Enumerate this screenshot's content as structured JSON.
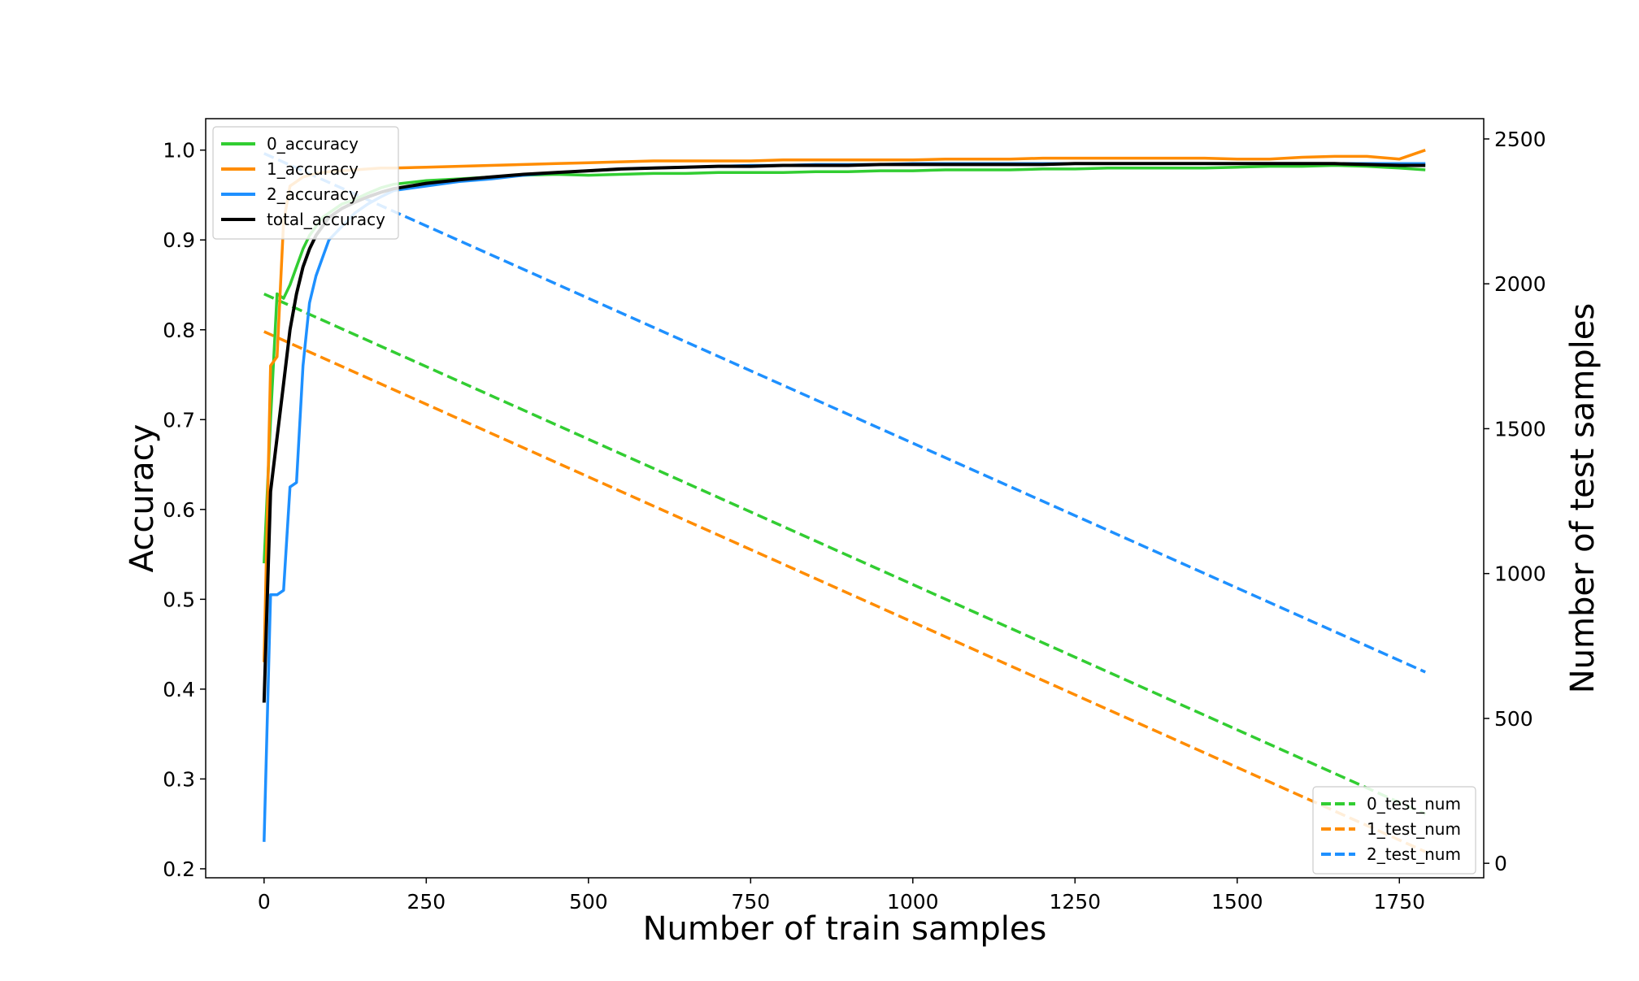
{
  "chart_data": {
    "type": "line",
    "xlabel": "Number of train samples",
    "ylabel": "Accuracy",
    "y2label": "Number of test samples",
    "xlim": [
      -90,
      1880
    ],
    "ylim": [
      0.19,
      1.035
    ],
    "y2lim": [
      -50,
      2570
    ],
    "x_ticks": [
      0,
      250,
      500,
      750,
      1000,
      1250,
      1500,
      1750
    ],
    "y_ticks": [
      0.2,
      0.3,
      0.4,
      0.5,
      0.6,
      0.7,
      0.8,
      0.9,
      1.0
    ],
    "y2_ticks": [
      0,
      500,
      1000,
      1500,
      2000,
      2500
    ],
    "grid": false,
    "legend_left_placement": "top-left",
    "legend_right_placement": "bottom-right",
    "accuracy_series": [
      {
        "name": "0_accuracy",
        "color": "#32cd32",
        "x": [
          0,
          10,
          20,
          30,
          40,
          50,
          60,
          70,
          80,
          90,
          100,
          120,
          140,
          160,
          180,
          200,
          250,
          300,
          350,
          400,
          450,
          500,
          550,
          600,
          650,
          700,
          750,
          800,
          850,
          900,
          950,
          1000,
          1050,
          1100,
          1150,
          1200,
          1250,
          1300,
          1350,
          1400,
          1450,
          1500,
          1550,
          1600,
          1650,
          1700,
          1750,
          1790
        ],
        "values": [
          0.54,
          0.7,
          0.84,
          0.835,
          0.85,
          0.87,
          0.89,
          0.905,
          0.915,
          0.925,
          0.93,
          0.94,
          0.945,
          0.952,
          0.958,
          0.962,
          0.966,
          0.968,
          0.97,
          0.972,
          0.973,
          0.972,
          0.973,
          0.974,
          0.974,
          0.975,
          0.975,
          0.975,
          0.976,
          0.976,
          0.977,
          0.977,
          0.978,
          0.978,
          0.978,
          0.979,
          0.979,
          0.98,
          0.98,
          0.98,
          0.98,
          0.981,
          0.982,
          0.982,
          0.983,
          0.982,
          0.98,
          0.978
        ]
      },
      {
        "name": "1_accuracy",
        "color": "#ff8c00",
        "x": [
          0,
          10,
          20,
          30,
          40,
          50,
          60,
          70,
          80,
          90,
          100,
          120,
          140,
          160,
          180,
          200,
          250,
          300,
          350,
          400,
          450,
          500,
          550,
          600,
          650,
          700,
          750,
          800,
          850,
          900,
          950,
          1000,
          1050,
          1100,
          1150,
          1200,
          1250,
          1300,
          1350,
          1400,
          1450,
          1500,
          1550,
          1600,
          1650,
          1700,
          1750,
          1790
        ],
        "values": [
          0.43,
          0.76,
          0.77,
          0.92,
          0.96,
          0.965,
          0.97,
          0.972,
          0.974,
          0.975,
          0.976,
          0.977,
          0.978,
          0.979,
          0.98,
          0.98,
          0.981,
          0.982,
          0.983,
          0.984,
          0.985,
          0.986,
          0.987,
          0.988,
          0.988,
          0.988,
          0.988,
          0.989,
          0.989,
          0.989,
          0.989,
          0.989,
          0.99,
          0.99,
          0.99,
          0.991,
          0.991,
          0.991,
          0.991,
          0.991,
          0.991,
          0.99,
          0.99,
          0.992,
          0.993,
          0.993,
          0.99,
          1.0
        ]
      },
      {
        "name": "2_accuracy",
        "color": "#1e90ff",
        "x": [
          0,
          10,
          20,
          30,
          40,
          50,
          60,
          70,
          80,
          90,
          100,
          120,
          140,
          160,
          180,
          200,
          250,
          300,
          350,
          400,
          450,
          500,
          550,
          600,
          650,
          700,
          750,
          800,
          850,
          900,
          950,
          1000,
          1050,
          1100,
          1150,
          1200,
          1250,
          1300,
          1350,
          1400,
          1450,
          1500,
          1550,
          1600,
          1650,
          1700,
          1750,
          1790
        ],
        "values": [
          0.23,
          0.505,
          0.505,
          0.51,
          0.625,
          0.63,
          0.76,
          0.83,
          0.86,
          0.88,
          0.9,
          0.915,
          0.93,
          0.94,
          0.948,
          0.955,
          0.96,
          0.965,
          0.968,
          0.972,
          0.975,
          0.977,
          0.979,
          0.98,
          0.981,
          0.982,
          0.983,
          0.983,
          0.984,
          0.984,
          0.984,
          0.985,
          0.985,
          0.985,
          0.985,
          0.985,
          0.985,
          0.985,
          0.985,
          0.985,
          0.985,
          0.985,
          0.985,
          0.985,
          0.985,
          0.985,
          0.985,
          0.985
        ]
      },
      {
        "name": "total_accuracy",
        "color": "#000000",
        "x": [
          0,
          10,
          20,
          30,
          40,
          50,
          60,
          70,
          80,
          90,
          100,
          120,
          140,
          160,
          180,
          200,
          250,
          300,
          350,
          400,
          450,
          500,
          550,
          600,
          650,
          700,
          750,
          800,
          850,
          900,
          950,
          1000,
          1050,
          1100,
          1150,
          1200,
          1250,
          1300,
          1350,
          1400,
          1450,
          1500,
          1550,
          1600,
          1650,
          1700,
          1750,
          1790
        ],
        "values": [
          0.385,
          0.62,
          0.68,
          0.74,
          0.8,
          0.84,
          0.87,
          0.89,
          0.905,
          0.915,
          0.925,
          0.935,
          0.942,
          0.948,
          0.953,
          0.957,
          0.963,
          0.967,
          0.97,
          0.973,
          0.975,
          0.977,
          0.979,
          0.98,
          0.981,
          0.982,
          0.982,
          0.983,
          0.983,
          0.983,
          0.984,
          0.984,
          0.984,
          0.984,
          0.984,
          0.984,
          0.985,
          0.985,
          0.985,
          0.985,
          0.985,
          0.985,
          0.985,
          0.985,
          0.985,
          0.984,
          0.983,
          0.983
        ]
      }
    ],
    "test_num_series": [
      {
        "name": "0_test_num",
        "color": "#32cd32",
        "x": [
          0,
          1790
        ],
        "values": [
          1965,
          170
        ]
      },
      {
        "name": "1_test_num",
        "color": "#ff8c00",
        "x": [
          0,
          1790
        ],
        "values": [
          1835,
          40
        ]
      },
      {
        "name": "2_test_num",
        "color": "#1e90ff",
        "x": [
          0,
          1790
        ],
        "values": [
          2450,
          660
        ]
      }
    ]
  }
}
